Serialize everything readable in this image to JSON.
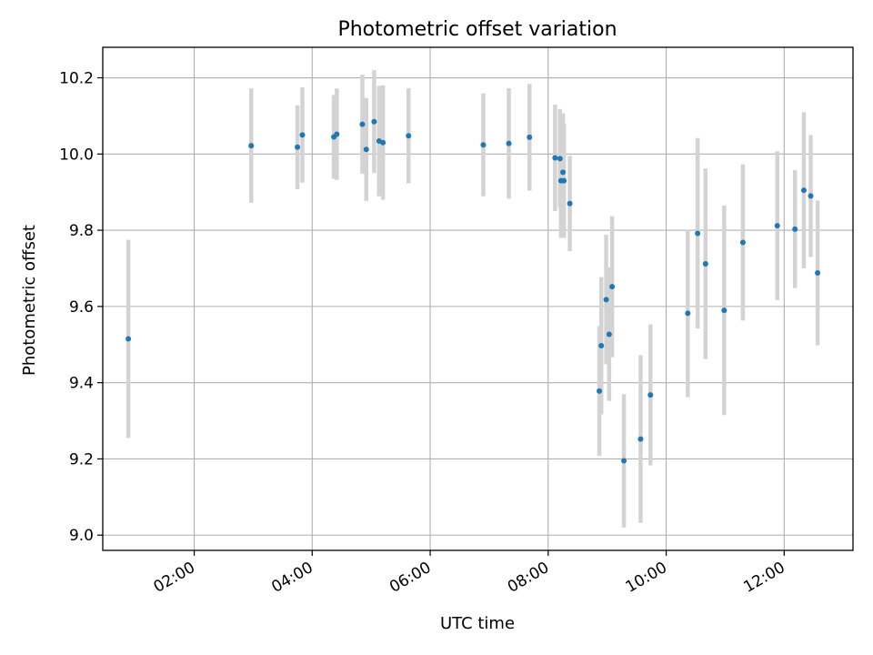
{
  "chart_data": {
    "type": "scatter",
    "title": "Photometric offset variation",
    "xlabel": "UTC time",
    "ylabel": "Photometric offset",
    "x_axis_type": "time",
    "xlim": [
      "00:27",
      "13:10"
    ],
    "ylim": [
      8.96,
      10.28
    ],
    "grid": true,
    "legend": "none",
    "x_ticks": [
      "02:00",
      "04:00",
      "06:00",
      "08:00",
      "10:00",
      "12:00"
    ],
    "y_ticks": [
      "9.0",
      "9.2",
      "9.4",
      "9.6",
      "9.8",
      "10.0",
      "10.2"
    ],
    "colors": {
      "points": "#1f77b4",
      "error_bars": "#d3d3d3",
      "grid": "#b0b0b0",
      "frame": "#000000"
    },
    "series": [
      {
        "points": [
          {
            "x": "00:53",
            "y": 9.515,
            "yerr": 0.26
          },
          {
            "x": "02:58",
            "y": 10.022,
            "yerr": 0.15
          },
          {
            "x": "03:45",
            "y": 10.018,
            "yerr": 0.11
          },
          {
            "x": "03:50",
            "y": 10.05,
            "yerr": 0.125
          },
          {
            "x": "04:22",
            "y": 10.045,
            "yerr": 0.11
          },
          {
            "x": "04:25",
            "y": 10.052,
            "yerr": 0.12
          },
          {
            "x": "04:51",
            "y": 10.078,
            "yerr": 0.13
          },
          {
            "x": "04:55",
            "y": 10.012,
            "yerr": 0.135
          },
          {
            "x": "05:03",
            "y": 10.085,
            "yerr": 0.135
          },
          {
            "x": "05:08",
            "y": 10.034,
            "yerr": 0.145
          },
          {
            "x": "05:12",
            "y": 10.03,
            "yerr": 0.15
          },
          {
            "x": "05:38",
            "y": 10.048,
            "yerr": 0.125
          },
          {
            "x": "06:54",
            "y": 10.024,
            "yerr": 0.135
          },
          {
            "x": "07:20",
            "y": 10.028,
            "yerr": 0.145
          },
          {
            "x": "07:41",
            "y": 10.044,
            "yerr": 0.14
          },
          {
            "x": "08:07",
            "y": 9.99,
            "yerr": 0.14
          },
          {
            "x": "08:12",
            "y": 9.988,
            "yerr": 0.13
          },
          {
            "x": "08:13",
            "y": 9.93,
            "yerr": 0.15
          },
          {
            "x": "08:15",
            "y": 9.952,
            "yerr": 0.155
          },
          {
            "x": "08:16",
            "y": 9.93,
            "yerr": 0.15
          },
          {
            "x": "08:22",
            "y": 9.87,
            "yerr": 0.125
          },
          {
            "x": "08:52",
            "y": 9.378,
            "yerr": 0.17
          },
          {
            "x": "08:54",
            "y": 9.497,
            "yerr": 0.18
          },
          {
            "x": "08:59",
            "y": 9.618,
            "yerr": 0.17
          },
          {
            "x": "09:02",
            "y": 9.527,
            "yerr": 0.175
          },
          {
            "x": "09:05",
            "y": 9.652,
            "yerr": 0.185
          },
          {
            "x": "09:17",
            "y": 9.195,
            "yerr": 0.175
          },
          {
            "x": "09:34",
            "y": 9.252,
            "yerr": 0.22
          },
          {
            "x": "09:44",
            "y": 9.368,
            "yerr": 0.185
          },
          {
            "x": "10:22",
            "y": 9.582,
            "yerr": 0.22
          },
          {
            "x": "10:32",
            "y": 9.792,
            "yerr": 0.25
          },
          {
            "x": "10:40",
            "y": 9.712,
            "yerr": 0.25
          },
          {
            "x": "10:59",
            "y": 9.59,
            "yerr": 0.275
          },
          {
            "x": "11:18",
            "y": 9.768,
            "yerr": 0.205
          },
          {
            "x": "11:53",
            "y": 9.812,
            "yerr": 0.195
          },
          {
            "x": "12:11",
            "y": 9.803,
            "yerr": 0.155
          },
          {
            "x": "12:20",
            "y": 9.905,
            "yerr": 0.205
          },
          {
            "x": "12:27",
            "y": 9.89,
            "yerr": 0.16
          },
          {
            "x": "12:34",
            "y": 9.688,
            "yerr": 0.19
          }
        ]
      }
    ]
  }
}
